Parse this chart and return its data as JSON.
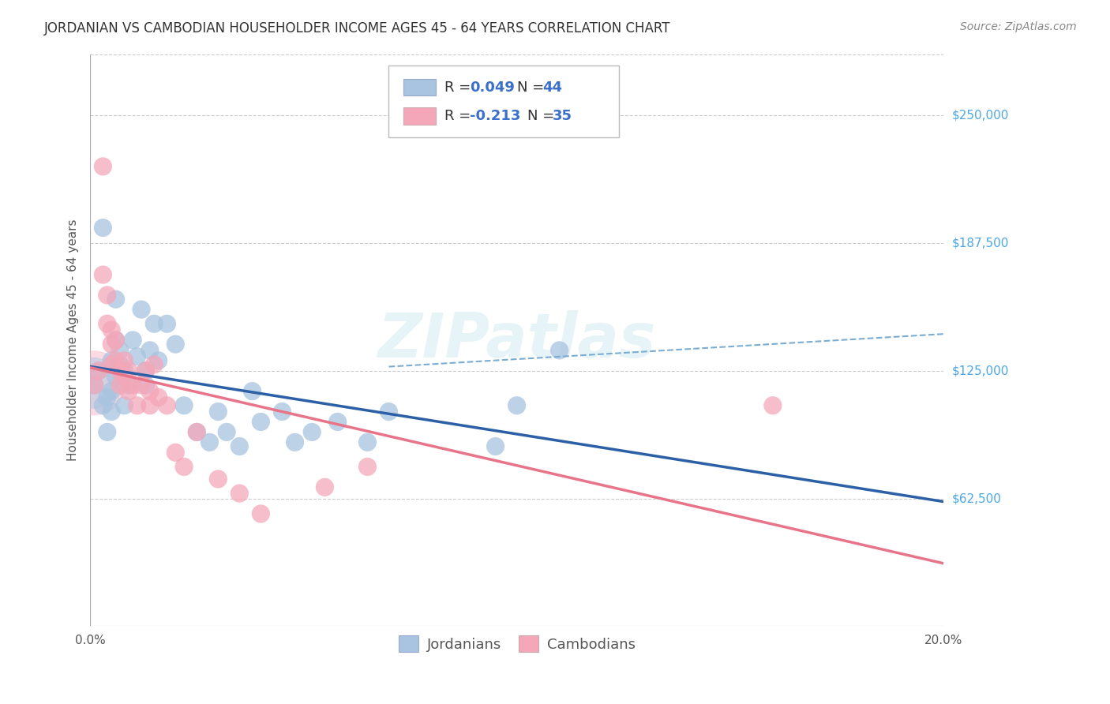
{
  "title": "JORDANIAN VS CAMBODIAN HOUSEHOLDER INCOME AGES 45 - 64 YEARS CORRELATION CHART",
  "source": "Source: ZipAtlas.com",
  "ylabel": "Householder Income Ages 45 - 64 years",
  "xlim": [
    0.0,
    0.2
  ],
  "ylim": [
    0,
    280000
  ],
  "yticks": [
    62500,
    125000,
    187500,
    250000
  ],
  "ytick_labels": [
    "$62,500",
    "$125,000",
    "$187,500",
    "$250,000"
  ],
  "xticks": [
    0.0,
    0.02,
    0.04,
    0.06,
    0.08,
    0.1,
    0.12,
    0.14,
    0.16,
    0.18,
    0.2
  ],
  "xtick_labels": [
    "0.0%",
    "",
    "",
    "",
    "",
    "",
    "",
    "",
    "",
    "",
    "20.0%"
  ],
  "watermark": "ZIPatlas",
  "r_jordan": 0.049,
  "n_jordan": 44,
  "r_cambodian": -0.213,
  "n_cambodian": 35,
  "jordan_color": "#a8c4e0",
  "cambodian_color": "#f4a7b9",
  "jordan_line_color": "#2b5fa6",
  "cambodian_line_color": "#e8748a",
  "jordan_dashed_color": "#7badd4",
  "axis_label_color": "#4da6e8",
  "background_color": "#ffffff",
  "grid_color": "#cccccc",
  "title_color": "#333333",
  "jordanians_x": [
    0.001,
    0.002,
    0.003,
    0.003,
    0.004,
    0.004,
    0.005,
    0.005,
    0.005,
    0.006,
    0.006,
    0.006,
    0.007,
    0.007,
    0.008,
    0.008,
    0.009,
    0.01,
    0.011,
    0.012,
    0.013,
    0.013,
    0.014,
    0.015,
    0.016,
    0.018,
    0.02,
    0.022,
    0.025,
    0.028,
    0.03,
    0.032,
    0.035,
    0.038,
    0.04,
    0.045,
    0.048,
    0.052,
    0.058,
    0.065,
    0.07,
    0.095,
    0.1,
    0.11
  ],
  "jordanians_y": [
    118000,
    125000,
    108000,
    195000,
    112000,
    95000,
    105000,
    130000,
    115000,
    122000,
    160000,
    140000,
    135000,
    128000,
    125000,
    108000,
    118000,
    140000,
    132000,
    155000,
    125000,
    118000,
    135000,
    148000,
    130000,
    148000,
    138000,
    108000,
    95000,
    90000,
    105000,
    95000,
    88000,
    115000,
    100000,
    105000,
    90000,
    95000,
    100000,
    90000,
    105000,
    88000,
    108000,
    135000
  ],
  "cambodians_x": [
    0.001,
    0.002,
    0.003,
    0.003,
    0.004,
    0.004,
    0.005,
    0.005,
    0.005,
    0.006,
    0.006,
    0.007,
    0.007,
    0.008,
    0.008,
    0.009,
    0.009,
    0.01,
    0.011,
    0.012,
    0.013,
    0.014,
    0.014,
    0.015,
    0.016,
    0.018,
    0.02,
    0.022,
    0.025,
    0.03,
    0.035,
    0.04,
    0.055,
    0.065,
    0.16
  ],
  "cambodians_y": [
    118000,
    125000,
    225000,
    172000,
    162000,
    148000,
    145000,
    138000,
    128000,
    140000,
    130000,
    125000,
    118000,
    130000,
    122000,
    125000,
    115000,
    118000,
    108000,
    118000,
    125000,
    115000,
    108000,
    128000,
    112000,
    108000,
    85000,
    78000,
    95000,
    72000,
    65000,
    55000,
    68000,
    78000,
    108000
  ]
}
